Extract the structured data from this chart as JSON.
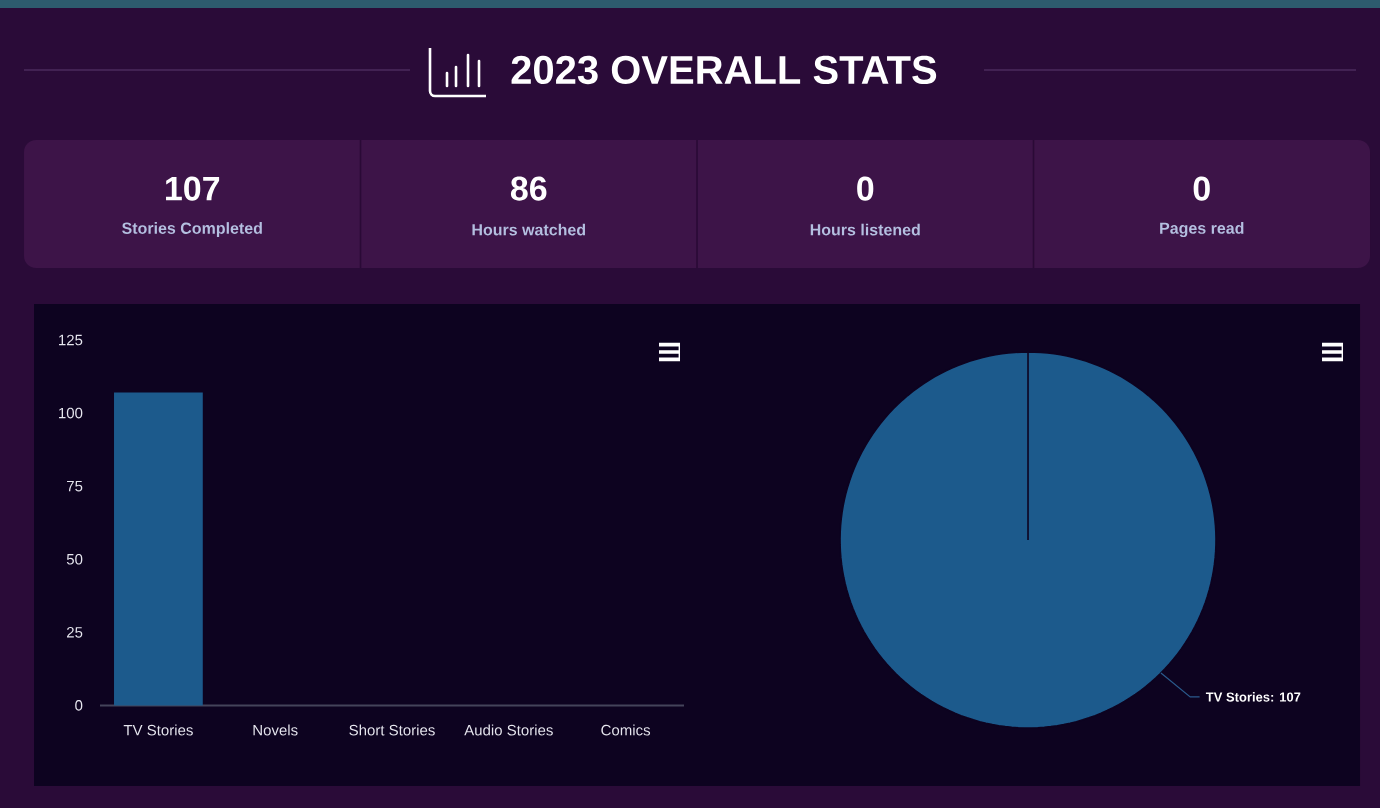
{
  "chart_data": [
    {
      "type": "other",
      "title": "2023 OVERALL STATS",
      "categories": [
        "Stories Completed",
        "Hours watched",
        "Hours listened",
        "Pages read"
      ],
      "values": [
        107,
        86,
        0,
        0
      ],
      "data_labels": true
    },
    {
      "type": "bar",
      "categories": [
        "TV Stories",
        "Novels",
        "Short Stories",
        "Audio Stories",
        "Comics"
      ],
      "values": [
        107,
        0,
        0,
        0,
        0
      ],
      "color": "#1c5a8c",
      "ylim": [
        0,
        125
      ],
      "yticks": [
        0,
        25,
        50,
        75,
        100,
        125
      ]
    },
    {
      "type": "pie",
      "categories": [
        null
      ],
      "values": [
        107
      ],
      "colors": [
        "#1c5a8c"
      ],
      "value_labels": [
        "TV Stories: 107"
      ]
    }
  ]
}
